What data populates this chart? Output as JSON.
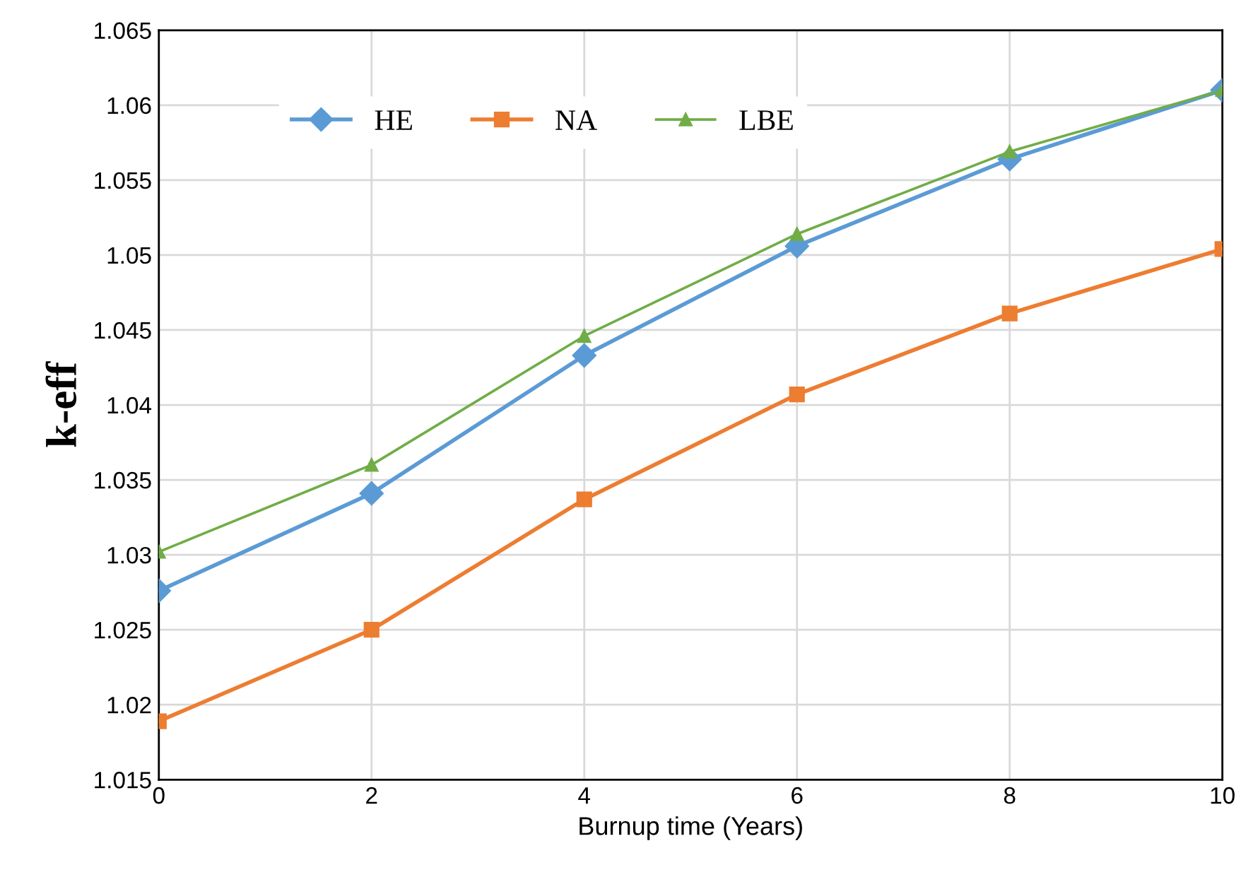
{
  "chart_data": {
    "type": "line",
    "xlabel": "Burnup time (Years)",
    "ylabel": "k-eff",
    "x": [
      0,
      2,
      4,
      6,
      8,
      10
    ],
    "series": [
      {
        "name": "HE",
        "color": "#5b9bd5",
        "marker": "diamond",
        "values": [
          1.0276,
          1.0341,
          1.0433,
          1.0506,
          1.0564,
          1.061
        ]
      },
      {
        "name": "NA",
        "color": "#ed7d31",
        "marker": "square",
        "values": [
          1.0189,
          1.025,
          1.0337,
          1.0407,
          1.0461,
          1.0504
        ]
      },
      {
        "name": "LBE",
        "color": "#70ad47",
        "marker": "triangle",
        "values": [
          1.0302,
          1.036,
          1.0446,
          1.0514,
          1.0569,
          1.061
        ]
      }
    ],
    "xlim": [
      0,
      10
    ],
    "xticks": [
      0,
      2,
      4,
      6,
      8,
      10
    ],
    "ylim": [
      1.015,
      1.065
    ],
    "yticks": [
      1.015,
      1.02,
      1.025,
      1.03,
      1.035,
      1.04,
      1.045,
      1.05,
      1.055,
      1.06,
      1.065
    ],
    "grid": true,
    "legend": "upper left",
    "line_style": "solid"
  }
}
